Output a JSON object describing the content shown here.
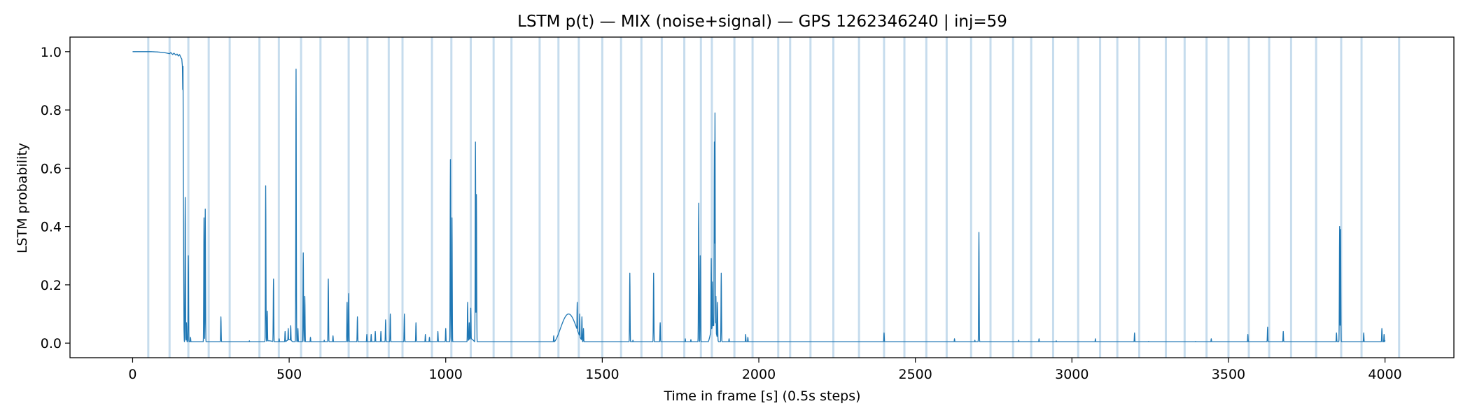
{
  "chart_data": {
    "type": "line",
    "title": "LSTM p(t) — MIX (noise+signal) — GPS 1262346240 | inj=59",
    "xlabel": "Time in frame [s] (0.5s steps)",
    "ylabel": "LSTM probability",
    "xlim": [
      -200,
      4220
    ],
    "ylim": [
      -0.05,
      1.05
    ],
    "xticks": [
      0,
      500,
      1000,
      1500,
      2000,
      2500,
      3000,
      3500,
      4000
    ],
    "yticks": [
      0.0,
      0.2,
      0.4,
      0.6,
      0.8,
      1.0
    ],
    "xtick_labels": [
      "0",
      "500",
      "1000",
      "1500",
      "2000",
      "2500",
      "3000",
      "3500",
      "4000"
    ],
    "ytick_labels": [
      "0.0",
      "0.2",
      "0.4",
      "0.6",
      "0.8",
      "1.0"
    ],
    "grid": false,
    "line_color": "#1f77b4",
    "band_color": "#aecde6",
    "injection_markers": [
      50,
      118,
      178,
      243,
      310,
      405,
      467,
      538,
      600,
      690,
      750,
      818,
      862,
      956,
      1018,
      1080,
      1153,
      1210,
      1300,
      1360,
      1425,
      1500,
      1560,
      1625,
      1690,
      1762,
      1815,
      1850,
      1922,
      1980,
      2062,
      2100,
      2165,
      2238,
      2320,
      2400,
      2465,
      2535,
      2600,
      2678,
      2740,
      2812,
      2870,
      2940,
      3020,
      3090,
      3145,
      3215,
      3300,
      3360,
      3430,
      3500,
      3565,
      3630,
      3700,
      3780,
      3860,
      3925,
      4045
    ],
    "series": [
      {
        "baseline": 0.005,
        "head": [
          [
            0,
            1.0
          ],
          [
            20,
            1.0
          ],
          [
            40,
            1.0
          ],
          [
            60,
            1.0
          ],
          [
            80,
            0.999
          ],
          [
            100,
            0.997
          ],
          [
            110,
            0.995
          ],
          [
            118,
            0.993
          ],
          [
            122,
            0.997
          ],
          [
            128,
            0.99
          ],
          [
            132,
            0.995
          ],
          [
            138,
            0.988
          ],
          [
            142,
            0.992
          ],
          [
            146,
            0.985
          ],
          [
            150,
            0.99
          ],
          [
            154,
            0.98
          ],
          [
            157,
            0.975
          ],
          [
            159,
            0.95
          ],
          [
            160,
            0.87
          ],
          [
            161,
            0.95
          ],
          [
            162,
            0.6
          ],
          [
            163,
            0.3
          ],
          [
            164,
            0.05
          ],
          [
            165,
            0.01
          ]
        ],
        "peaks": [
          [
            168,
            0.5
          ],
          [
            172,
            0.07
          ],
          [
            178,
            0.3
          ],
          [
            185,
            0.02
          ],
          [
            228,
            0.43
          ],
          [
            232,
            0.46
          ],
          [
            282,
            0.09
          ],
          [
            373,
            0.008
          ],
          [
            425,
            0.54
          ],
          [
            430,
            0.11
          ],
          [
            450,
            0.22
          ],
          [
            468,
            0.015
          ],
          [
            487,
            0.04
          ],
          [
            497,
            0.05
          ],
          [
            505,
            0.06
          ],
          [
            522,
            0.94
          ],
          [
            528,
            0.05
          ],
          [
            545,
            0.31
          ],
          [
            550,
            0.16
          ],
          [
            568,
            0.02
          ],
          [
            612,
            0.01
          ],
          [
            625,
            0.22
          ],
          [
            640,
            0.025
          ],
          [
            685,
            0.14
          ],
          [
            690,
            0.17
          ],
          [
            718,
            0.09
          ],
          [
            748,
            0.03
          ],
          [
            762,
            0.03
          ],
          [
            775,
            0.04
          ],
          [
            793,
            0.04
          ],
          [
            808,
            0.08
          ],
          [
            823,
            0.1
          ],
          [
            868,
            0.1
          ],
          [
            905,
            0.07
          ],
          [
            935,
            0.03
          ],
          [
            948,
            0.02
          ],
          [
            975,
            0.04
          ],
          [
            1000,
            0.05
          ],
          [
            1015,
            0.63
          ],
          [
            1020,
            0.43
          ],
          [
            1070,
            0.14
          ],
          [
            1075,
            0.07
          ],
          [
            1080,
            0.12
          ],
          [
            1095,
            0.69
          ],
          [
            1098,
            0.51
          ],
          [
            1345,
            0.025
          ],
          [
            1390,
            0.1
          ],
          [
            1395,
            0.06
          ],
          [
            1400,
            0.09
          ],
          [
            1420,
            0.14
          ],
          [
            1428,
            0.1
          ],
          [
            1435,
            0.09
          ],
          [
            1440,
            0.05
          ],
          [
            1588,
            0.24
          ],
          [
            1598,
            0.01
          ],
          [
            1664,
            0.24
          ],
          [
            1685,
            0.07
          ],
          [
            1765,
            0.015
          ],
          [
            1783,
            0.012
          ],
          [
            1808,
            0.48
          ],
          [
            1813,
            0.3
          ],
          [
            1848,
            0.29
          ],
          [
            1852,
            0.21
          ],
          [
            1858,
            0.69
          ],
          [
            1860,
            0.79
          ],
          [
            1863,
            0.16
          ],
          [
            1868,
            0.14
          ],
          [
            1880,
            0.24
          ],
          [
            1905,
            0.015
          ],
          [
            1958,
            0.03
          ],
          [
            1965,
            0.02
          ],
          [
            2020,
            0.003
          ],
          [
            2400,
            0.035
          ],
          [
            2625,
            0.015
          ],
          [
            2690,
            0.01
          ],
          [
            2703,
            0.38
          ],
          [
            2830,
            0.01
          ],
          [
            2895,
            0.015
          ],
          [
            2950,
            0.008
          ],
          [
            3075,
            0.015
          ],
          [
            3200,
            0.035
          ],
          [
            3245,
            0.006
          ],
          [
            3395,
            0.006
          ],
          [
            3445,
            0.015
          ],
          [
            3562,
            0.03
          ],
          [
            3625,
            0.055
          ],
          [
            3675,
            0.04
          ],
          [
            3845,
            0.035
          ],
          [
            3855,
            0.4
          ],
          [
            3858,
            0.39
          ],
          [
            3932,
            0.035
          ],
          [
            3990,
            0.05
          ],
          [
            3997,
            0.03
          ],
          [
            4000,
            0.01
          ]
        ],
        "humps": [
          [
            1340,
            1445,
            0.1
          ],
          [
            1835,
            1875,
            0.06
          ],
          [
            1060,
            1100,
            0.015
          ],
          [
            400,
            470,
            0.008
          ],
          [
            480,
            520,
            0.012
          ]
        ]
      }
    ]
  }
}
